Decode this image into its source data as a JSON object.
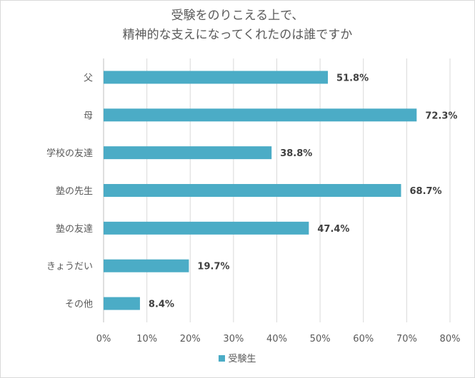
{
  "chart_data": {
    "type": "bar",
    "orientation": "horizontal",
    "title_lines": [
      "受験をのりこえる上で、",
      "精神的な支えになってくれたのは誰ですか"
    ],
    "categories": [
      "父",
      "母",
      "学校の友達",
      "塾の先生",
      "塾の友達",
      "きょうだい",
      "その他"
    ],
    "series": [
      {
        "name": "受験生",
        "values": [
          51.8,
          72.3,
          38.8,
          68.7,
          47.4,
          19.7,
          8.4
        ],
        "color": "#4bacc6"
      }
    ],
    "data_labels": [
      "51.8%",
      "72.3%",
      "38.8%",
      "68.7%",
      "47.4%",
      "19.7%",
      "8.4%"
    ],
    "x_ticks": [
      "0%",
      "10%",
      "20%",
      "30%",
      "40%",
      "50%",
      "60%",
      "70%",
      "80%"
    ],
    "xlim": [
      0,
      80
    ],
    "grid": true,
    "legend": "bottom"
  }
}
